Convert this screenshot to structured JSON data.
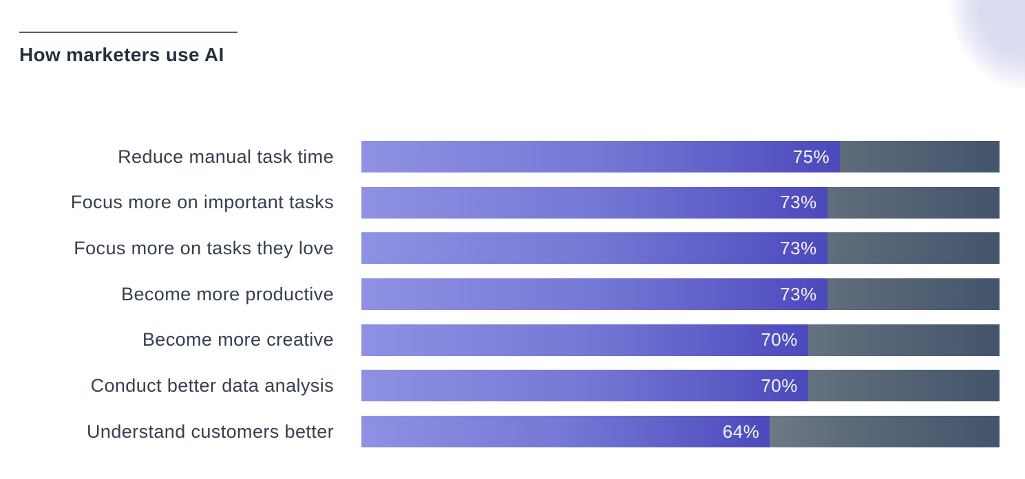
{
  "header": {
    "title": "How marketers use AI"
  },
  "chart_data": {
    "type": "bar",
    "orientation": "horizontal",
    "title": "How marketers use AI",
    "categories": [
      "Reduce manual task time",
      "Focus more on important tasks",
      "Focus more on tasks they love",
      "Become more productive",
      "Become more creative",
      "Conduct better data analysis",
      "Understand customers better"
    ],
    "values": [
      75,
      73,
      73,
      73,
      70,
      70,
      64
    ],
    "value_labels": [
      "75%",
      "73%",
      "73%",
      "73%",
      "70%",
      "70%",
      "64%"
    ],
    "xlabel": "",
    "ylabel": "",
    "xlim": [
      0,
      100
    ],
    "grid": false,
    "legend": false,
    "value_label_position": "inside-end"
  },
  "colors": {
    "fill_start": "#8f91e3",
    "fill_mid": "#7578d5",
    "fill_end": "#4c49bc",
    "track_start": "#7b8591",
    "track_mid": "#5d6a7a",
    "track_end": "#43546b",
    "value_text": "#f4f4fa",
    "label_text": "#34404e",
    "title_text": "#243140",
    "rule": "#515c69",
    "corner": "#dadcf1"
  }
}
